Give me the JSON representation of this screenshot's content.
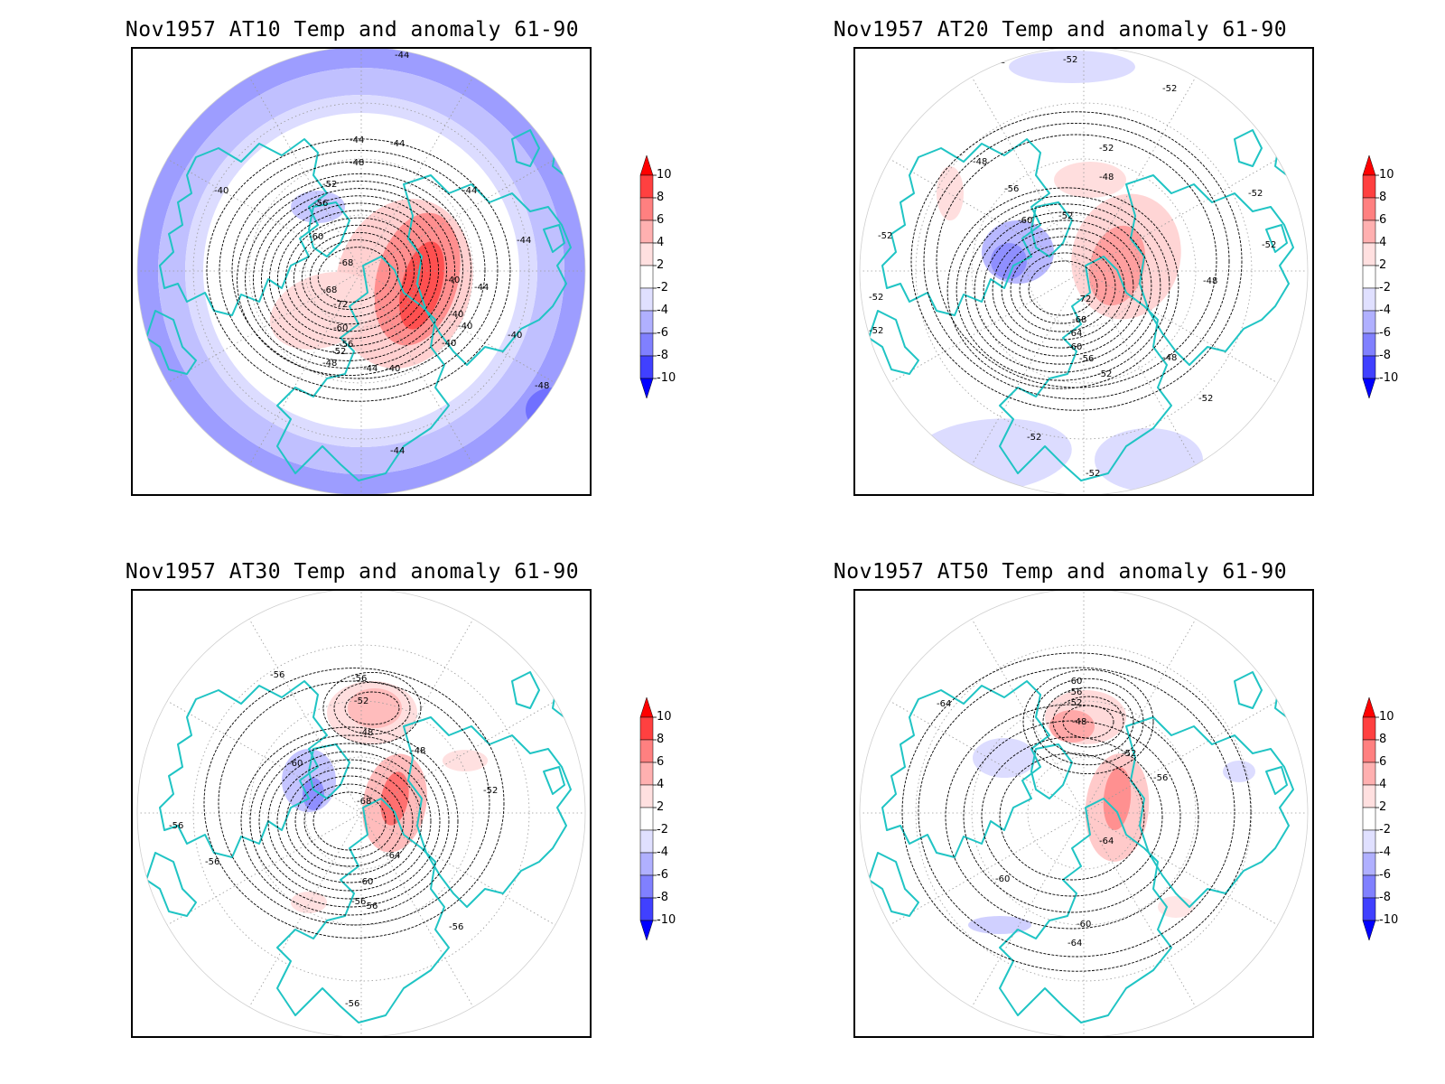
{
  "palette": {
    "coast": "#20c4c4",
    "contour": "#000000",
    "grid": "#9a9a9a"
  },
  "colorbar": {
    "labels": [
      "10",
      "8",
      "6",
      "4",
      "2",
      "-2",
      "-4",
      "-6",
      "-8",
      "-10"
    ],
    "colors": [
      "#ff0000",
      "#ff4040",
      "#ff8080",
      "#ffb0b0",
      "#ffe0e0",
      "#ffffff",
      "#e0e0ff",
      "#b0b0ff",
      "#8080ff",
      "#4040ff",
      "#0000ff"
    ]
  },
  "panels": [
    {
      "title": "Nov1957 AT10 Temp and anomaly 61-90",
      "contour_labels": [
        "-44",
        "-44",
        "-44",
        "-48",
        "-52",
        "-56",
        "-60",
        "-68",
        "-68",
        "-72",
        "-60",
        "-56",
        "-52",
        "-48",
        "-44",
        "-40",
        "-40",
        "-40",
        "-40",
        "-40",
        "-40",
        "-44",
        "-44",
        "-40",
        "-44",
        "-48",
        "-44"
      ]
    },
    {
      "title": "Nov1957 AT20 Temp and anomaly 61-90",
      "contour_labels": [
        "-52",
        "-52",
        "-52",
        "-52",
        "-52",
        "-48",
        "-48",
        "-56",
        "-60",
        "-52",
        "-72",
        "-68",
        "-64",
        "-60",
        "-56",
        "-52",
        "-48",
        "-48",
        "-52",
        "-52",
        "-52",
        "-52",
        "-52",
        "-52",
        "-52"
      ]
    },
    {
      "title": "Nov1957 AT30 Temp and anomaly 61-90",
      "contour_labels": [
        "-56",
        "-56",
        "-52",
        "-48",
        "-48",
        "-60",
        "-68",
        "-52",
        "-56",
        "-56",
        "-64",
        "-60",
        "-56",
        "-56",
        "-56",
        "-56"
      ]
    },
    {
      "title": "Nov1957 AT50 Temp and anomaly 61-90",
      "contour_labels": [
        "-60",
        "-56",
        "-52",
        "-48",
        "-64",
        "-52",
        "-56",
        "-64",
        "-60",
        "-60",
        "-64"
      ]
    }
  ]
}
